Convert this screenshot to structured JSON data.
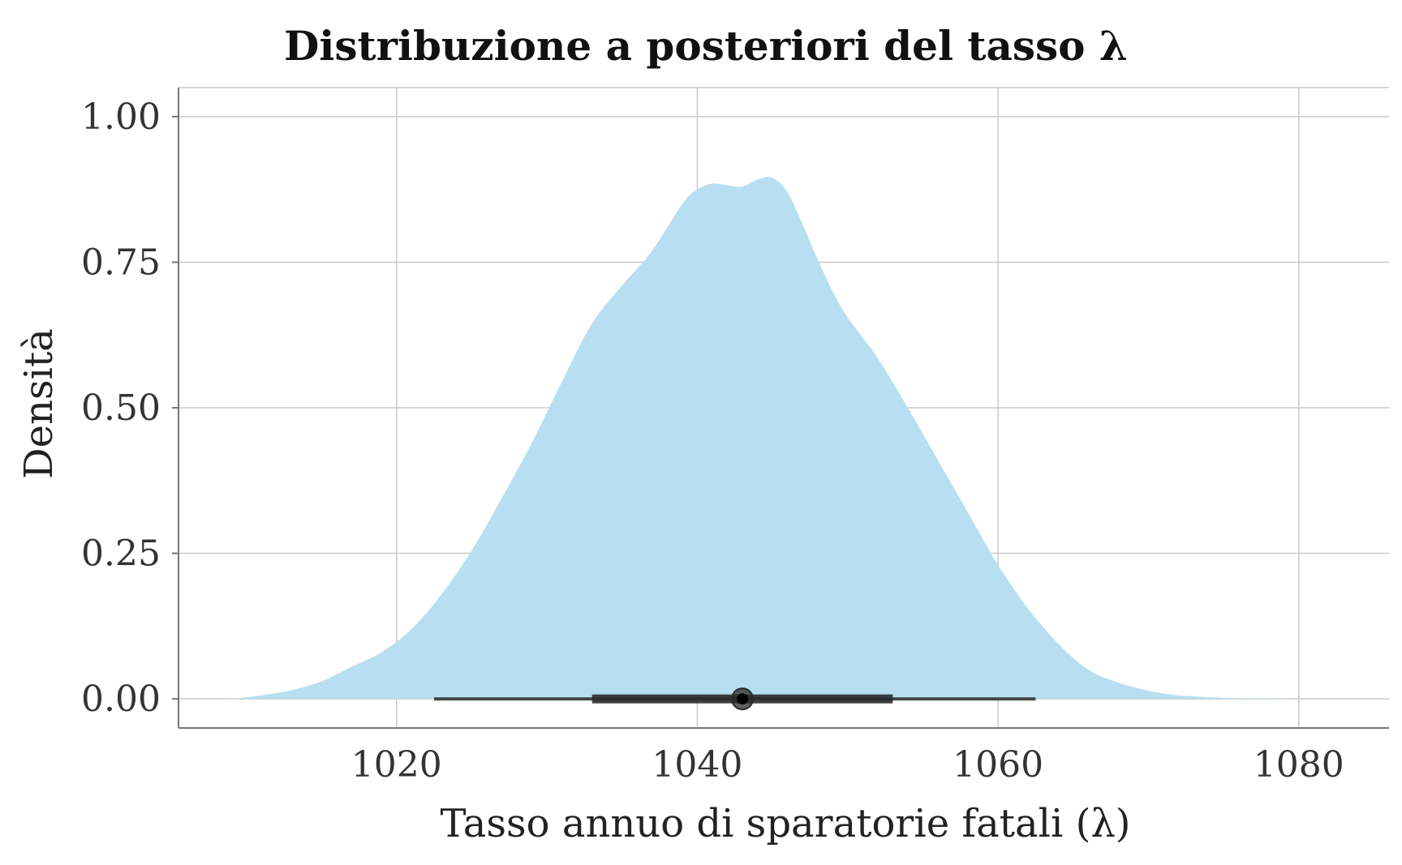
{
  "chart_data": {
    "type": "area",
    "title": "Distribuzione a posteriori del tasso λ",
    "xlabel": "Tasso annuo di sparatorie fatali (λ)",
    "ylabel": "Densità",
    "xlim": [
      1005.5,
      1086
    ],
    "ylim": [
      -0.05,
      1.05
    ],
    "x_ticks": [
      1020,
      1040,
      1060,
      1080
    ],
    "x_tick_labels": [
      "1020",
      "1040",
      "1060",
      "1080"
    ],
    "y_ticks": [
      0.0,
      0.25,
      0.5,
      0.75,
      1.0
    ],
    "y_tick_labels": [
      "0.00",
      "0.25",
      "0.50",
      "0.75",
      "1.00"
    ],
    "grid": true,
    "fill_color": "#b7dff1",
    "interval_color": "#2b2b2b",
    "series": [
      {
        "x": [
          1009,
          1011,
          1013,
          1015,
          1017,
          1019,
          1021,
          1023,
          1025,
          1027,
          1029,
          1031,
          1033,
          1035,
          1037,
          1039,
          1040,
          1041,
          1042,
          1043,
          1044,
          1045,
          1046,
          1047,
          1048,
          1049,
          1050,
          1052,
          1054,
          1056,
          1058,
          1060,
          1062,
          1064,
          1066,
          1068,
          1070,
          1072,
          1074,
          1076,
          1078,
          1080,
          1082,
          1083
        ],
        "y": [
          0.0,
          0.006,
          0.015,
          0.03,
          0.055,
          0.08,
          0.12,
          0.18,
          0.255,
          0.345,
          0.44,
          0.545,
          0.645,
          0.71,
          0.77,
          0.85,
          0.875,
          0.885,
          0.882,
          0.88,
          0.892,
          0.895,
          0.87,
          0.815,
          0.755,
          0.7,
          0.655,
          0.585,
          0.5,
          0.41,
          0.32,
          0.23,
          0.155,
          0.095,
          0.05,
          0.028,
          0.014,
          0.006,
          0.003,
          0.001,
          0.0005,
          0.0,
          0.0,
          0.0
        ]
      }
    ],
    "point_estimate": 1043,
    "interval_inner": [
      1033,
      1053
    ],
    "interval_outer": [
      1022.5,
      1062.5
    ]
  }
}
